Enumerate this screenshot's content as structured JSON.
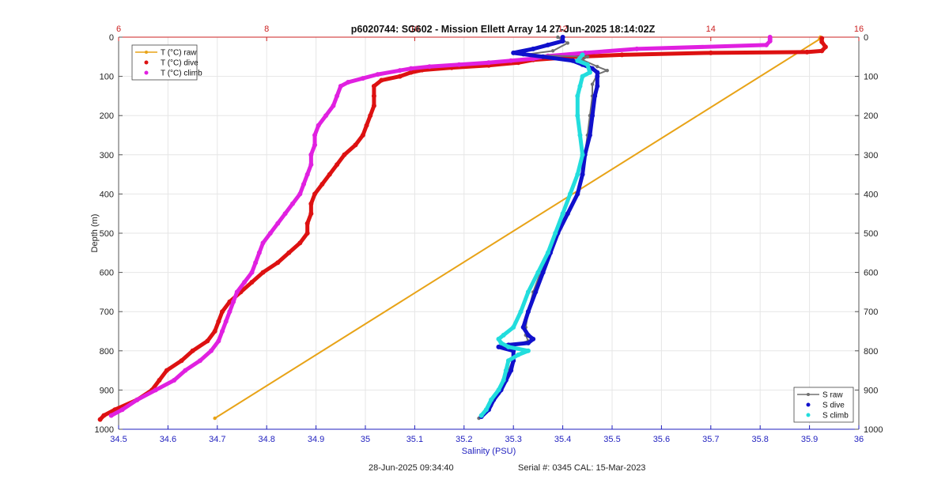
{
  "chart_data": {
    "type": "scatter",
    "title": "p6020744: SG602 - Mission Ellett Array 14 27-Jun-2025 18:14:02Z",
    "ylabel": "Depth (m)",
    "ylim": [
      0,
      1000
    ],
    "yticks": [
      "0",
      "100",
      "200",
      "300",
      "400",
      "500",
      "600",
      "700",
      "800",
      "900",
      "1000"
    ],
    "y_reversed": true,
    "grid": true,
    "x_bottom": {
      "label": "Salinity (PSU)",
      "lim": [
        34.5,
        36
      ],
      "ticks": [
        "34.5",
        "34.6",
        "34.7",
        "34.8",
        "34.9",
        "35",
        "35.1",
        "35.2",
        "35.3",
        "35.4",
        "35.5",
        "35.6",
        "35.7",
        "35.8",
        "35.9",
        "36"
      ],
      "color": "#1f1fbf"
    },
    "x_top": {
      "label": "",
      "lim": [
        6,
        16
      ],
      "ticks": [
        "6",
        "8",
        "10",
        "12",
        "14",
        "16"
      ],
      "color": "#cc2222"
    },
    "legend_temperature": {
      "placement": "top-left",
      "entries": [
        "T (°C) raw",
        "T (°C) dive",
        "T (°C) climb"
      ]
    },
    "legend_salinity": {
      "placement": "bottom-right",
      "entries": [
        "S raw",
        "S dive",
        "S climb"
      ]
    },
    "series": [
      {
        "name": "T (°C) raw",
        "axis": "top",
        "color": "#e8a317",
        "marker": "line",
        "points": [
          [
            15.48,
            0
          ],
          [
            15.5,
            2
          ],
          [
            15.47,
            5
          ],
          [
            7.3,
            972
          ]
        ]
      },
      {
        "name": "T (°C) dive",
        "axis": "top",
        "color": "#dd1111",
        "marker": "dot",
        "points": [
          [
            15.5,
            3
          ],
          [
            15.5,
            12
          ],
          [
            15.55,
            25
          ],
          [
            15.5,
            35
          ],
          [
            15.3,
            38
          ],
          [
            14.0,
            40
          ],
          [
            12.8,
            45
          ],
          [
            12.2,
            50
          ],
          [
            11.6,
            58
          ],
          [
            11.4,
            65
          ],
          [
            11.0,
            72
          ],
          [
            10.5,
            78
          ],
          [
            10.1,
            84
          ],
          [
            9.95,
            90
          ],
          [
            9.8,
            100
          ],
          [
            9.55,
            110
          ],
          [
            9.45,
            125
          ],
          [
            9.45,
            150
          ],
          [
            9.45,
            175
          ],
          [
            9.4,
            200
          ],
          [
            9.35,
            225
          ],
          [
            9.3,
            250
          ],
          [
            9.2,
            275
          ],
          [
            9.05,
            300
          ],
          [
            8.95,
            325
          ],
          [
            8.85,
            350
          ],
          [
            8.75,
            375
          ],
          [
            8.65,
            400
          ],
          [
            8.6,
            425
          ],
          [
            8.6,
            450
          ],
          [
            8.55,
            475
          ],
          [
            8.55,
            500
          ],
          [
            8.45,
            525
          ],
          [
            8.3,
            550
          ],
          [
            8.15,
            575
          ],
          [
            7.95,
            600
          ],
          [
            7.8,
            625
          ],
          [
            7.65,
            650
          ],
          [
            7.5,
            675
          ],
          [
            7.4,
            700
          ],
          [
            7.35,
            725
          ],
          [
            7.3,
            750
          ],
          [
            7.2,
            775
          ],
          [
            7.0,
            800
          ],
          [
            6.85,
            825
          ],
          [
            6.65,
            850
          ],
          [
            6.55,
            875
          ],
          [
            6.45,
            900
          ],
          [
            6.25,
            925
          ],
          [
            5.95,
            950
          ],
          [
            5.8,
            965
          ],
          [
            5.75,
            975
          ]
        ]
      },
      {
        "name": "T (°C) climb",
        "axis": "top",
        "color": "#e020e0",
        "marker": "dot",
        "points": [
          [
            14.8,
            0
          ],
          [
            14.8,
            5
          ],
          [
            14.8,
            10
          ],
          [
            14.75,
            20
          ],
          [
            13.0,
            30
          ],
          [
            12.3,
            40
          ],
          [
            11.8,
            48
          ],
          [
            11.6,
            55
          ],
          [
            11.3,
            60
          ],
          [
            11.0,
            65
          ],
          [
            10.6,
            70
          ],
          [
            10.2,
            75
          ],
          [
            9.95,
            80
          ],
          [
            9.8,
            85
          ],
          [
            9.5,
            95
          ],
          [
            9.3,
            105
          ],
          [
            9.1,
            115
          ],
          [
            9.0,
            125
          ],
          [
            8.95,
            150
          ],
          [
            8.9,
            175
          ],
          [
            8.8,
            200
          ],
          [
            8.7,
            225
          ],
          [
            8.65,
            250
          ],
          [
            8.65,
            275
          ],
          [
            8.6,
            300
          ],
          [
            8.6,
            325
          ],
          [
            8.55,
            350
          ],
          [
            8.5,
            375
          ],
          [
            8.45,
            400
          ],
          [
            8.35,
            425
          ],
          [
            8.25,
            450
          ],
          [
            8.15,
            475
          ],
          [
            8.05,
            500
          ],
          [
            7.95,
            525
          ],
          [
            7.9,
            550
          ],
          [
            7.85,
            575
          ],
          [
            7.8,
            600
          ],
          [
            7.7,
            625
          ],
          [
            7.6,
            650
          ],
          [
            7.55,
            675
          ],
          [
            7.5,
            700
          ],
          [
            7.45,
            725
          ],
          [
            7.4,
            750
          ],
          [
            7.35,
            775
          ],
          [
            7.25,
            800
          ],
          [
            7.1,
            825
          ],
          [
            6.9,
            850
          ],
          [
            6.75,
            875
          ],
          [
            6.5,
            900
          ],
          [
            6.25,
            925
          ],
          [
            6.05,
            950
          ],
          [
            5.9,
            965
          ]
        ]
      },
      {
        "name": "S raw",
        "axis": "bottom",
        "color": "#707070",
        "marker": "line",
        "points": [
          [
            35.39,
            0
          ],
          [
            35.41,
            15
          ],
          [
            35.38,
            35
          ],
          [
            35.32,
            45
          ],
          [
            35.45,
            50
          ],
          [
            35.44,
            58
          ],
          [
            35.47,
            75
          ],
          [
            35.49,
            85
          ],
          [
            35.47,
            95
          ],
          [
            35.46,
            120
          ],
          [
            35.46,
            150
          ],
          [
            35.455,
            200
          ],
          [
            35.45,
            250
          ],
          [
            35.445,
            300
          ],
          [
            35.44,
            350
          ],
          [
            35.43,
            400
          ],
          [
            35.41,
            450
          ],
          [
            35.39,
            500
          ],
          [
            35.37,
            550
          ],
          [
            35.355,
            600
          ],
          [
            35.34,
            650
          ],
          [
            35.33,
            700
          ],
          [
            35.325,
            740
          ],
          [
            35.325,
            760
          ],
          [
            35.33,
            775
          ],
          [
            35.3,
            785
          ],
          [
            35.3,
            800
          ],
          [
            35.3,
            820
          ],
          [
            35.29,
            850
          ],
          [
            35.28,
            880
          ],
          [
            35.27,
            910
          ],
          [
            35.255,
            940
          ],
          [
            35.24,
            960
          ],
          [
            35.23,
            972
          ]
        ]
      },
      {
        "name": "S dive",
        "axis": "bottom",
        "color": "#1010cc",
        "marker": "dot",
        "points": [
          [
            35.4,
            0
          ],
          [
            35.4,
            10
          ],
          [
            35.37,
            20
          ],
          [
            35.34,
            30
          ],
          [
            35.3,
            40
          ],
          [
            35.36,
            50
          ],
          [
            35.42,
            60
          ],
          [
            35.44,
            70
          ],
          [
            35.46,
            80
          ],
          [
            35.47,
            90
          ],
          [
            35.47,
            100
          ],
          [
            35.47,
            125
          ],
          [
            35.465,
            150
          ],
          [
            35.46,
            200
          ],
          [
            35.455,
            250
          ],
          [
            35.445,
            300
          ],
          [
            35.44,
            350
          ],
          [
            35.43,
            400
          ],
          [
            35.41,
            450
          ],
          [
            35.39,
            500
          ],
          [
            35.375,
            550
          ],
          [
            35.36,
            600
          ],
          [
            35.345,
            650
          ],
          [
            35.33,
            700
          ],
          [
            35.32,
            740
          ],
          [
            35.33,
            760
          ],
          [
            35.34,
            770
          ],
          [
            35.33,
            780
          ],
          [
            35.29,
            785
          ],
          [
            35.27,
            790
          ],
          [
            35.3,
            800
          ],
          [
            35.3,
            825
          ],
          [
            35.295,
            850
          ],
          [
            35.285,
            875
          ],
          [
            35.275,
            900
          ],
          [
            35.26,
            925
          ],
          [
            35.25,
            950
          ],
          [
            35.235,
            968
          ]
        ]
      },
      {
        "name": "S climb",
        "axis": "bottom",
        "color": "#22dddd",
        "marker": "dot",
        "points": [
          [
            35.44,
            45
          ],
          [
            35.43,
            60
          ],
          [
            35.45,
            70
          ],
          [
            35.455,
            90
          ],
          [
            35.44,
            100
          ],
          [
            35.435,
            125
          ],
          [
            35.43,
            150
          ],
          [
            35.43,
            200
          ],
          [
            35.435,
            250
          ],
          [
            35.44,
            300
          ],
          [
            35.43,
            350
          ],
          [
            35.415,
            400
          ],
          [
            35.4,
            450
          ],
          [
            35.385,
            500
          ],
          [
            35.37,
            550
          ],
          [
            35.35,
            600
          ],
          [
            35.33,
            650
          ],
          [
            35.315,
            700
          ],
          [
            35.3,
            740
          ],
          [
            35.28,
            760
          ],
          [
            35.27,
            770
          ],
          [
            35.275,
            780
          ],
          [
            35.29,
            790
          ],
          [
            35.33,
            800
          ],
          [
            35.31,
            810
          ],
          [
            35.29,
            825
          ],
          [
            35.285,
            850
          ],
          [
            35.28,
            875
          ],
          [
            35.27,
            900
          ],
          [
            35.255,
            925
          ],
          [
            35.245,
            950
          ],
          [
            35.235,
            965
          ]
        ]
      }
    ]
  },
  "footer": {
    "timestamp": "28-Jun-2025 09:34:40",
    "serial": "Serial #: 0345  CAL: 15-Mar-2023"
  },
  "colors": {
    "axis_gray": "#555555",
    "grid": "#e6e6e6"
  }
}
